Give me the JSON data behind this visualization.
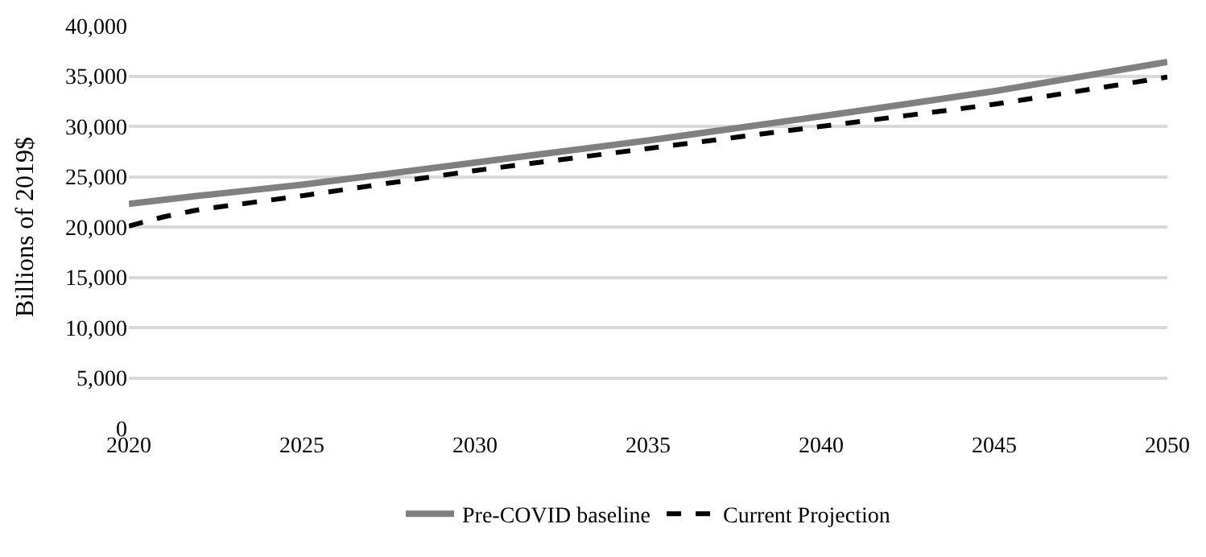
{
  "chart_data": {
    "type": "line",
    "ylabel": "Billions of 2019$",
    "x": [
      2020,
      2021,
      2022,
      2025,
      2030,
      2035,
      2040,
      2045,
      2050
    ],
    "series": [
      {
        "name": "Pre-COVID baseline",
        "color": "#808080",
        "line_style": "solid",
        "values": [
          22300,
          22700,
          23100,
          24200,
          26400,
          28600,
          31000,
          33500,
          36400
        ]
      },
      {
        "name": "Current Projection",
        "color": "#000000",
        "line_style": "dashed",
        "values": [
          20100,
          21000,
          21700,
          23100,
          25600,
          27800,
          30000,
          32200,
          34900
        ]
      }
    ],
    "xlim": [
      2020,
      2050
    ],
    "xticks": [
      2020,
      2025,
      2030,
      2035,
      2040,
      2045,
      2050
    ],
    "ylim": [
      0,
      40000
    ],
    "yticks": [
      {
        "value": 0,
        "label": "0"
      },
      {
        "value": 5000,
        "label": "5,000"
      },
      {
        "value": 10000,
        "label": "10,000"
      },
      {
        "value": 15000,
        "label": "15,000"
      },
      {
        "value": 20000,
        "label": "20,000"
      },
      {
        "value": 25000,
        "label": "25,000"
      },
      {
        "value": 30000,
        "label": "30,000"
      },
      {
        "value": 35000,
        "label": "35,000"
      },
      {
        "value": 40000,
        "label": "40,000"
      }
    ],
    "grid": "y",
    "legend": "bottom",
    "marker": "none"
  }
}
